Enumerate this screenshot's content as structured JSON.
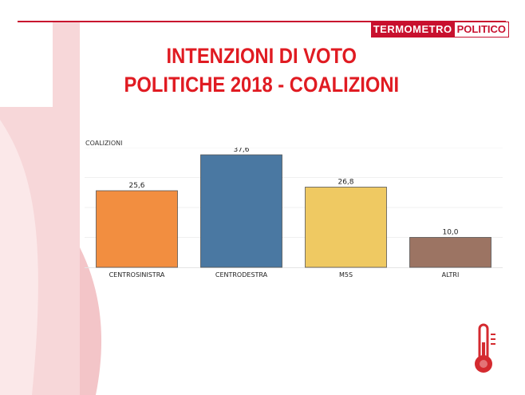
{
  "brand": {
    "part1": "TERMOMETRO",
    "part2": "POLITICO"
  },
  "title": {
    "line1": "INTENZIONI DI VOTO",
    "line2": "POLITICHE 2018 - COALIZIONI"
  },
  "chart_data": {
    "type": "bar",
    "axis_title": "COALIZIONI",
    "categories": [
      "CENTROSINISTRA",
      "CENTRODESTRA",
      "M5S",
      "ALTRI"
    ],
    "values": [
      25.6,
      37.6,
      26.8,
      10.0
    ],
    "value_labels": [
      "25,6",
      "37,6",
      "26,8",
      "10,0"
    ],
    "colors": [
      "#f28e40",
      "#4a78a2",
      "#efc962",
      "#9c7463"
    ],
    "ylim": [
      0,
      40
    ],
    "grid": true,
    "legend": "none"
  },
  "colors": {
    "accent": "#e01b22",
    "background_shape": "#f7d7d9"
  },
  "icons": {
    "corner": "thermometer-icon"
  }
}
